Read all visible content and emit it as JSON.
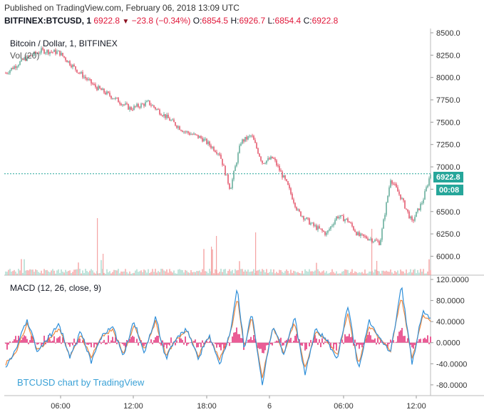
{
  "header": {
    "published": "Published on TradingView.com, February 06, 2018 13:09 UTC",
    "symbol": "BITFINEX:BTCUSD, 1",
    "last": "6922.8",
    "change": "−23.8 (−0.34%)",
    "o_label": "O:",
    "o": "6854.5",
    "h_label": "H:",
    "h": "6926.7",
    "l_label": "L:",
    "l": "6854.4",
    "c_label": "C:",
    "c": "6922.8"
  },
  "price_pane": {
    "title": "Bitcoin / Dollar, 1, BITFINEX",
    "volume_label": "Vol (20)",
    "last_price_tag": "6922.8",
    "countdown_tag": "00:08"
  },
  "macd_pane": {
    "title": "MACD (12, 26, close, 9)"
  },
  "watermark": "BTCUSD chart by TradingView",
  "colors": {
    "up": "#53a38f",
    "down": "#e0435a",
    "macd_line": "#2f8fd9",
    "signal_line": "#f0883e",
    "histogram": "#e0186a",
    "last_price": "#26a69a"
  },
  "chart_data": [
    {
      "type": "line",
      "subtype": "candlestick",
      "pane": "price",
      "x_ticks": [
        "06:00",
        "12:00",
        "18:00",
        "6",
        "06:00",
        "12:00"
      ],
      "y_ticks": [
        "8500.0",
        "8250.0",
        "8000.0",
        "7750.0",
        "7500.0",
        "7250.0",
        "7000.0",
        "6750.0",
        "6500.0",
        "6250.0",
        "6000.0"
      ],
      "ylim": [
        5900,
        8500
      ],
      "last_price": 6922.8,
      "x": [
        0,
        25,
        50,
        75,
        100,
        125,
        150,
        175,
        200,
        225,
        250,
        275,
        300,
        315,
        330,
        345,
        360,
        375,
        395,
        410,
        430,
        450,
        465,
        480,
        495,
        510,
        525,
        540,
        555,
        570,
        585,
        596
      ],
      "close": [
        8050,
        8200,
        8300,
        8280,
        8080,
        7900,
        7780,
        7650,
        7720,
        7560,
        7400,
        7320,
        7150,
        6750,
        7280,
        7350,
        7050,
        7100,
        6800,
        6500,
        6350,
        6250,
        6450,
        6400,
        6230,
        6200,
        6150,
        6870,
        6650,
        6380,
        6620,
        6923
      ]
    },
    {
      "type": "bar",
      "pane": "volume",
      "label": "Vol (20)",
      "note": "volume bars along the bottom of the price pane"
    },
    {
      "type": "line",
      "pane": "macd",
      "title": "MACD (12, 26, close, 9)",
      "y_ticks": [
        "120.0000",
        "80.0000",
        "40.0000",
        "0.0000",
        "-40.0000",
        "-80.0000"
      ],
      "ylim": [
        -95,
        120
      ],
      "x": [
        0,
        15,
        30,
        45,
        60,
        75,
        90,
        105,
        120,
        135,
        150,
        165,
        180,
        195,
        210,
        225,
        240,
        255,
        270,
        285,
        300,
        315,
        325,
        335,
        345,
        360,
        375,
        390,
        405,
        420,
        435,
        450,
        465,
        480,
        495,
        510,
        525,
        540,
        555,
        570,
        585,
        596
      ],
      "macd": [
        -45,
        -10,
        45,
        -20,
        10,
        35,
        -30,
        20,
        -35,
        15,
        30,
        -25,
        40,
        -20,
        50,
        -30,
        10,
        25,
        -30,
        15,
        -40,
        20,
        105,
        -15,
        60,
        -80,
        35,
        -25,
        50,
        -60,
        25,
        5,
        -30,
        70,
        -50,
        40,
        10,
        -20,
        110,
        -40,
        60,
        45
      ],
      "signal": [
        -40,
        -15,
        35,
        -15,
        5,
        28,
        -25,
        15,
        -28,
        12,
        25,
        -20,
        32,
        -15,
        40,
        -25,
        8,
        20,
        -25,
        12,
        -32,
        15,
        85,
        -10,
        48,
        -65,
        28,
        -20,
        40,
        -48,
        20,
        5,
        -25,
        55,
        -40,
        32,
        8,
        -15,
        90,
        -32,
        50,
        40
      ]
    }
  ]
}
